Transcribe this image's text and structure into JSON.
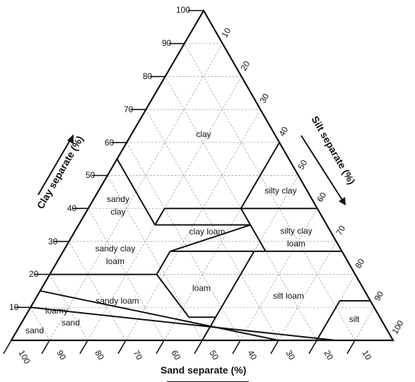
{
  "axes": {
    "clay": {
      "title": "Clay separate  (%)",
      "ticks": [
        "10",
        "20",
        "30",
        "40",
        "50",
        "60",
        "70",
        "80",
        "90",
        "100"
      ]
    },
    "silt": {
      "title": "Silt separate  (%)",
      "ticks": [
        "10",
        "20",
        "30",
        "40",
        "50",
        "60",
        "70",
        "80",
        "90",
        "100"
      ]
    },
    "sand": {
      "title": "Sand separate  (%)",
      "ticks": [
        "100",
        "90",
        "80",
        "70",
        "60",
        "50",
        "40",
        "30",
        "20",
        "10"
      ]
    }
  },
  "regions": [
    {
      "key": "clay",
      "lines": [
        "clay"
      ]
    },
    {
      "key": "silty-clay",
      "lines": [
        "silty clay"
      ]
    },
    {
      "key": "sandy-clay",
      "lines": [
        "sandy",
        "clay"
      ]
    },
    {
      "key": "clay-loam",
      "lines": [
        "clay loam"
      ]
    },
    {
      "key": "silty-clay-loam",
      "lines": [
        "silty clay",
        "loam"
      ]
    },
    {
      "key": "sandy-clay-loam",
      "lines": [
        "sandy clay",
        "loam"
      ]
    },
    {
      "key": "loam",
      "lines": [
        "loam"
      ]
    },
    {
      "key": "silt-loam",
      "lines": [
        "silt loam"
      ]
    },
    {
      "key": "sandy-loam",
      "lines": [
        "sandy loam"
      ]
    },
    {
      "key": "loamy-sand",
      "lines": [
        "loamy",
        "sand"
      ]
    },
    {
      "key": "sand",
      "lines": [
        "sand"
      ]
    },
    {
      "key": "silt",
      "lines": [
        "silt"
      ]
    }
  ],
  "colors": {
    "line": "#111111",
    "grid": "#9a9a9a",
    "background": "#ffffff"
  }
}
